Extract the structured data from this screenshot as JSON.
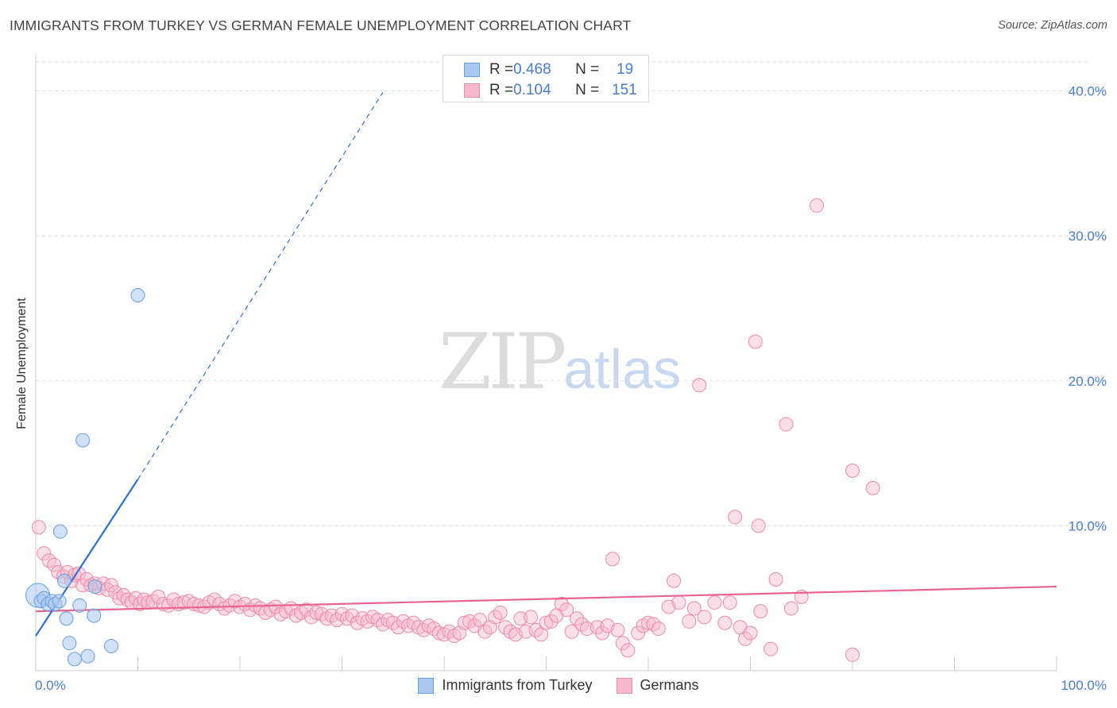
{
  "title": "IMMIGRANTS FROM TURKEY VS GERMAN FEMALE UNEMPLOYMENT CORRELATION CHART",
  "source": "Source: ZipAtlas.com",
  "watermark": {
    "zip": "ZIP",
    "atlas": "atlas"
  },
  "colors": {
    "blue": "#a9c8f0",
    "blue_stroke": "#6a9de0",
    "blue_line": "#2d6fce",
    "pink": "#f6b9cc",
    "pink_stroke": "#ea8aa8",
    "pink_line": "#e8648e",
    "tick_text": "#4a7cc9"
  },
  "legend_top": {
    "rows": [
      {
        "r_label": "R = ",
        "r_value": "0.468",
        "n_label": "N = ",
        "n_value": "19"
      },
      {
        "r_label": "R = ",
        "r_value": "0.104",
        "n_label": "N = ",
        "n_value": "151"
      }
    ]
  },
  "legend_bottom": [
    "Immigrants from Turkey",
    "Germans"
  ],
  "chart_data": {
    "type": "scatter",
    "title": "IMMIGRANTS FROM TURKEY VS GERMAN FEMALE UNEMPLOYMENT CORRELATION CHART",
    "xlabel": "",
    "ylabel": "Female Unemployment",
    "xlim": [
      0,
      100
    ],
    "ylim": [
      0,
      42
    ],
    "x_tick_labels": [
      "0.0%",
      "100.0%"
    ],
    "y_ticks": [
      10,
      20,
      30,
      40
    ],
    "y_tick_labels": [
      "10.0%",
      "20.0%",
      "30.0%",
      "40.0%"
    ],
    "series": [
      {
        "name": "Immigrants from Turkey",
        "R": 0.468,
        "N": 19,
        "trend": {
          "x0": 0,
          "y0": 2.4,
          "x1": 10,
          "y1": 13.2,
          "dashed_to_x": 34,
          "dashed_to_y": 39.9
        },
        "points": [
          {
            "x": 0.2,
            "y": 5.2,
            "big": true
          },
          {
            "x": 0.5,
            "y": 4.8
          },
          {
            "x": 0.8,
            "y": 5.0
          },
          {
            "x": 1.2,
            "y": 4.6
          },
          {
            "x": 1.6,
            "y": 4.8
          },
          {
            "x": 1.9,
            "y": 4.6
          },
          {
            "x": 2.3,
            "y": 4.8
          },
          {
            "x": 2.4,
            "y": 9.6
          },
          {
            "x": 2.8,
            "y": 6.2
          },
          {
            "x": 3.0,
            "y": 3.6
          },
          {
            "x": 3.3,
            "y": 1.9
          },
          {
            "x": 3.8,
            "y": 0.8
          },
          {
            "x": 4.3,
            "y": 4.5
          },
          {
            "x": 4.6,
            "y": 15.9
          },
          {
            "x": 5.1,
            "y": 1.0
          },
          {
            "x": 5.7,
            "y": 3.8
          },
          {
            "x": 5.8,
            "y": 5.8
          },
          {
            "x": 7.4,
            "y": 1.7
          },
          {
            "x": 10.0,
            "y": 25.9
          }
        ]
      },
      {
        "name": "Germans",
        "R": 0.104,
        "N": 151,
        "trend": {
          "x0": 0,
          "y0": 4.1,
          "x1": 100,
          "y1": 5.8
        },
        "points": [
          {
            "x": 0.3,
            "y": 9.9
          },
          {
            "x": 0.8,
            "y": 8.1
          },
          {
            "x": 1.3,
            "y": 7.6
          },
          {
            "x": 1.8,
            "y": 7.3
          },
          {
            "x": 2.2,
            "y": 6.8
          },
          {
            "x": 2.7,
            "y": 6.5
          },
          {
            "x": 3.1,
            "y": 6.8
          },
          {
            "x": 3.5,
            "y": 6.2
          },
          {
            "x": 3.8,
            "y": 6.6
          },
          {
            "x": 4.2,
            "y": 6.7
          },
          {
            "x": 4.6,
            "y": 5.9
          },
          {
            "x": 5.0,
            "y": 6.3
          },
          {
            "x": 5.4,
            "y": 5.9
          },
          {
            "x": 5.8,
            "y": 6.0
          },
          {
            "x": 6.2,
            "y": 5.7
          },
          {
            "x": 6.6,
            "y": 6.0
          },
          {
            "x": 7.0,
            "y": 5.6
          },
          {
            "x": 7.4,
            "y": 5.9
          },
          {
            "x": 7.8,
            "y": 5.4
          },
          {
            "x": 8.2,
            "y": 5.0
          },
          {
            "x": 8.6,
            "y": 5.2
          },
          {
            "x": 9.0,
            "y": 4.9
          },
          {
            "x": 9.4,
            "y": 4.7
          },
          {
            "x": 9.8,
            "y": 5.0
          },
          {
            "x": 10.2,
            "y": 4.6
          },
          {
            "x": 10.6,
            "y": 4.9
          },
          {
            "x": 11.0,
            "y": 4.7
          },
          {
            "x": 11.5,
            "y": 4.8
          },
          {
            "x": 12.0,
            "y": 5.1
          },
          {
            "x": 12.5,
            "y": 4.6
          },
          {
            "x": 13.0,
            "y": 4.5
          },
          {
            "x": 13.5,
            "y": 4.9
          },
          {
            "x": 14.0,
            "y": 4.6
          },
          {
            "x": 14.5,
            "y": 4.7
          },
          {
            "x": 15.0,
            "y": 4.8
          },
          {
            "x": 15.5,
            "y": 4.6
          },
          {
            "x": 16.0,
            "y": 4.5
          },
          {
            "x": 16.5,
            "y": 4.4
          },
          {
            "x": 17.0,
            "y": 4.7
          },
          {
            "x": 17.5,
            "y": 4.9
          },
          {
            "x": 18.0,
            "y": 4.6
          },
          {
            "x": 18.5,
            "y": 4.3
          },
          {
            "x": 19.0,
            "y": 4.5
          },
          {
            "x": 19.5,
            "y": 4.8
          },
          {
            "x": 20.0,
            "y": 4.4
          },
          {
            "x": 20.5,
            "y": 4.6
          },
          {
            "x": 21.0,
            "y": 4.2
          },
          {
            "x": 21.5,
            "y": 4.5
          },
          {
            "x": 22.0,
            "y": 4.3
          },
          {
            "x": 22.5,
            "y": 4.0
          },
          {
            "x": 23.0,
            "y": 4.2
          },
          {
            "x": 23.5,
            "y": 4.4
          },
          {
            "x": 24.0,
            "y": 3.9
          },
          {
            "x": 24.5,
            "y": 4.1
          },
          {
            "x": 25.0,
            "y": 4.3
          },
          {
            "x": 25.5,
            "y": 3.8
          },
          {
            "x": 26.0,
            "y": 4.0
          },
          {
            "x": 26.5,
            "y": 4.2
          },
          {
            "x": 27.0,
            "y": 3.7
          },
          {
            "x": 27.5,
            "y": 4.0
          },
          {
            "x": 28.0,
            "y": 3.9
          },
          {
            "x": 28.5,
            "y": 3.6
          },
          {
            "x": 29.0,
            "y": 3.8
          },
          {
            "x": 29.5,
            "y": 3.5
          },
          {
            "x": 30.0,
            "y": 3.9
          },
          {
            "x": 30.5,
            "y": 3.6
          },
          {
            "x": 31.0,
            "y": 3.8
          },
          {
            "x": 31.5,
            "y": 3.3
          },
          {
            "x": 32.0,
            "y": 3.6
          },
          {
            "x": 32.5,
            "y": 3.4
          },
          {
            "x": 33.0,
            "y": 3.7
          },
          {
            "x": 33.5,
            "y": 3.5
          },
          {
            "x": 34.0,
            "y": 3.2
          },
          {
            "x": 34.5,
            "y": 3.5
          },
          {
            "x": 35.0,
            "y": 3.3
          },
          {
            "x": 35.5,
            "y": 3.0
          },
          {
            "x": 36.0,
            "y": 3.4
          },
          {
            "x": 36.5,
            "y": 3.1
          },
          {
            "x": 37.0,
            "y": 3.3
          },
          {
            "x": 37.5,
            "y": 3.0
          },
          {
            "x": 38.0,
            "y": 2.8
          },
          {
            "x": 38.5,
            "y": 3.1
          },
          {
            "x": 39.0,
            "y": 2.9
          },
          {
            "x": 39.5,
            "y": 2.6
          },
          {
            "x": 40.0,
            "y": 2.5
          },
          {
            "x": 40.5,
            "y": 2.7
          },
          {
            "x": 41.0,
            "y": 2.4
          },
          {
            "x": 41.5,
            "y": 2.6
          },
          {
            "x": 42.0,
            "y": 3.3
          },
          {
            "x": 42.5,
            "y": 3.4
          },
          {
            "x": 43.0,
            "y": 3.1
          },
          {
            "x": 43.5,
            "y": 3.5
          },
          {
            "x": 44.0,
            "y": 2.7
          },
          {
            "x": 44.5,
            "y": 3.0
          },
          {
            "x": 45.0,
            "y": 3.7
          },
          {
            "x": 45.5,
            "y": 4.0
          },
          {
            "x": 46.0,
            "y": 3.0
          },
          {
            "x": 46.5,
            "y": 2.7
          },
          {
            "x": 47.0,
            "y": 2.5
          },
          {
            "x": 47.5,
            "y": 3.6
          },
          {
            "x": 48.0,
            "y": 2.7
          },
          {
            "x": 48.5,
            "y": 3.7
          },
          {
            "x": 49.0,
            "y": 2.8
          },
          {
            "x": 49.5,
            "y": 2.5
          },
          {
            "x": 50.0,
            "y": 3.3
          },
          {
            "x": 50.5,
            "y": 3.4
          },
          {
            "x": 51.0,
            "y": 3.8
          },
          {
            "x": 51.5,
            "y": 4.6
          },
          {
            "x": 52.0,
            "y": 4.2
          },
          {
            "x": 52.5,
            "y": 2.7
          },
          {
            "x": 53.0,
            "y": 3.6
          },
          {
            "x": 53.5,
            "y": 3.2
          },
          {
            "x": 54.0,
            "y": 2.9
          },
          {
            "x": 55.0,
            "y": 3.0
          },
          {
            "x": 55.5,
            "y": 2.6
          },
          {
            "x": 56.0,
            "y": 3.1
          },
          {
            "x": 57.0,
            "y": 2.8
          },
          {
            "x": 57.5,
            "y": 1.9
          },
          {
            "x": 58.0,
            "y": 1.4
          },
          {
            "x": 59.0,
            "y": 2.6
          },
          {
            "x": 59.5,
            "y": 3.1
          },
          {
            "x": 60.0,
            "y": 3.3
          },
          {
            "x": 60.5,
            "y": 3.2
          },
          {
            "x": 61.0,
            "y": 2.9
          },
          {
            "x": 62.0,
            "y": 4.4
          },
          {
            "x": 62.5,
            "y": 6.2
          },
          {
            "x": 63.0,
            "y": 4.7
          },
          {
            "x": 64.0,
            "y": 3.4
          },
          {
            "x": 64.5,
            "y": 4.3
          },
          {
            "x": 65.5,
            "y": 3.7
          },
          {
            "x": 66.5,
            "y": 4.7
          },
          {
            "x": 67.5,
            "y": 3.3
          },
          {
            "x": 68.0,
            "y": 4.7
          },
          {
            "x": 69.0,
            "y": 3.0
          },
          {
            "x": 69.5,
            "y": 2.2
          },
          {
            "x": 70.0,
            "y": 2.6
          },
          {
            "x": 71.0,
            "y": 4.1
          },
          {
            "x": 72.0,
            "y": 1.5
          },
          {
            "x": 75.0,
            "y": 5.1
          },
          {
            "x": 80.0,
            "y": 1.1
          },
          {
            "x": 56.5,
            "y": 7.7
          },
          {
            "x": 65.0,
            "y": 19.7
          },
          {
            "x": 68.5,
            "y": 10.6
          },
          {
            "x": 70.5,
            "y": 22.7
          },
          {
            "x": 70.8,
            "y": 10.0
          },
          {
            "x": 72.5,
            "y": 6.3
          },
          {
            "x": 73.5,
            "y": 17.0
          },
          {
            "x": 74.0,
            "y": 4.3
          },
          {
            "x": 76.5,
            "y": 32.1
          },
          {
            "x": 80.0,
            "y": 13.8
          },
          {
            "x": 82.0,
            "y": 12.6
          }
        ]
      }
    ]
  }
}
